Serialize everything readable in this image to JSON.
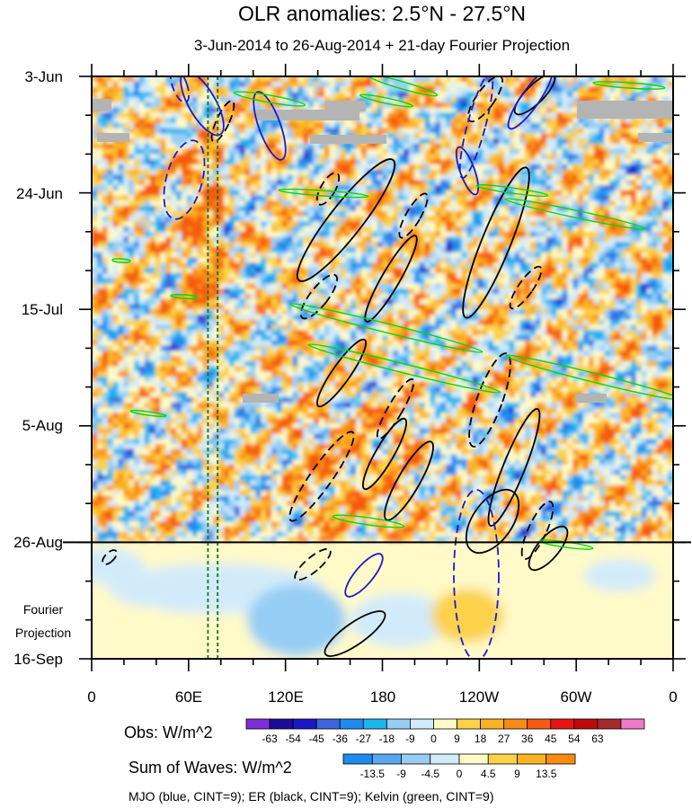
{
  "chart_data": {
    "type": "heatmap",
    "title": "OLR anomalies: 2.5°N - 27.5°N",
    "subtitle": "3-Jun-2014 to 26-Aug-2014 + 21-day Fourier Projection",
    "x_tick_labels": [
      "0",
      "60E",
      "120E",
      "180",
      "120W",
      "60W",
      "0"
    ],
    "y_tick_labels": [
      "3-Jun",
      "24-Jun",
      "15-Jul",
      "5-Aug",
      "26-Aug",
      "16-Sep"
    ],
    "projection_label": [
      "Fourier",
      "Projection"
    ],
    "xlim": [
      0,
      360
    ],
    "ylim_days": [
      0,
      105
    ],
    "observation_end_day": 84,
    "obs_colorbar": {
      "title": "Obs: W/m^2",
      "labels": [
        "-63",
        "-54",
        "-45",
        "-36",
        "-27",
        "-18",
        "-9",
        "0",
        "9",
        "18",
        "27",
        "36",
        "45",
        "54",
        "63"
      ],
      "colors": [
        "#7d2ed6",
        "#1c0a9a",
        "#1818c8",
        "#3f63dc",
        "#1e8bf0",
        "#1bb5f0",
        "#96cdf5",
        "#d2ebfa",
        "#fffac8",
        "#fbd24a",
        "#fbb323",
        "#f98b13",
        "#f55a10",
        "#e81313",
        "#c00a0a",
        "#a52a2a",
        "#f079c8"
      ]
    },
    "wave_colorbar": {
      "title": "Sum of Waves: W/m^2",
      "labels": [
        "-13.5",
        "-9",
        "-4.5",
        "0",
        "4.5",
        "9",
        "13.5"
      ],
      "colors": [
        "#1e8bf0",
        "#5aa9f0",
        "#96cdf5",
        "#d2ebfa",
        "#fffac8",
        "#fbd24a",
        "#fbb323",
        "#f98b13"
      ]
    },
    "legend_note": "MJO (blue, CINT=9); ER (black, CINT=9); Kelvin (green, CINT=9)",
    "reference_longitudes": [
      72,
      78
    ]
  }
}
